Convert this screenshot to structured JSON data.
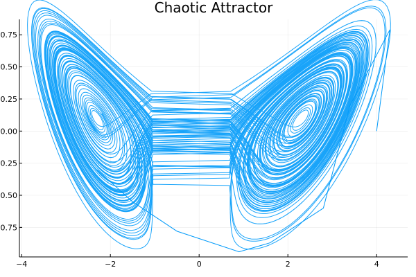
{
  "chart_data": {
    "type": "line",
    "title": "Chaotic Attractor",
    "xlabel": "",
    "ylabel": "",
    "xlim": [
      -4.05,
      4.7
    ],
    "ylim": [
      -0.98,
      0.87
    ],
    "xticks": [
      -4,
      -2,
      0,
      2,
      4
    ],
    "xtick_labels": [
      "−4",
      "−2",
      "0",
      "2",
      "4"
    ],
    "yticks": [
      -0.75,
      -0.5,
      -0.25,
      0.0,
      0.25,
      0.5,
      0.75
    ],
    "ytick_labels": [
      "−0.75",
      "−0.50",
      "−0.25",
      "0.00",
      "0.25",
      "0.50",
      "0.75"
    ],
    "grid": true,
    "legend": "none",
    "series": [
      {
        "color": "#009AFA",
        "description_of_shape": "double-scroll chaotic trajectory with two lobes centered near x=-2.3 and x=2.3, y=0; an outer excursion reaching x≈4.3, y≈0.79 and dipping to y≈-0.94 near x=0.9",
        "lobes": [
          {
            "center_x": -2.3,
            "center_y": 0.0,
            "outer_radius_x": 1.25,
            "outer_radius_y": 0.72,
            "inner_radius_x": 0.25,
            "inner_radius_y": 0.18
          },
          {
            "center_x": 2.3,
            "center_y": 0.0,
            "outer_radius_x": 1.6,
            "outer_radius_y": 0.72,
            "inner_radius_x": 0.25,
            "inner_radius_y": 0.18
          }
        ],
        "excursion_points": [
          [
            4.0,
            0.0
          ],
          [
            4.3,
            0.79
          ],
          [
            3.4,
            0.2
          ],
          [
            2.8,
            -0.6
          ],
          [
            1.6,
            -0.87
          ],
          [
            0.9,
            -0.94
          ],
          [
            -0.5,
            -0.78
          ],
          [
            -1.5,
            -0.55
          ],
          [
            -2.3,
            -0.3
          ]
        ]
      }
    ]
  }
}
